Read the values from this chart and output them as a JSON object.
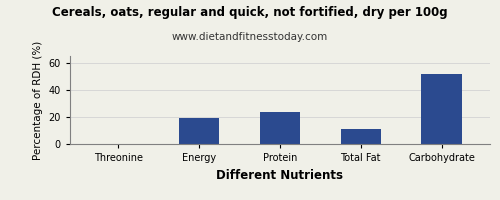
{
  "title": "Cereals, oats, regular and quick, not fortified, dry per 100g",
  "subtitle": "www.dietandfitnesstoday.com",
  "xlabel": "Different Nutrients",
  "ylabel": "Percentage of RDH (%)",
  "categories": [
    "Threonine",
    "Energy",
    "Protein",
    "Total Fat",
    "Carbohydrate"
  ],
  "values": [
    0.3,
    19.0,
    23.5,
    11.0,
    52.0
  ],
  "bar_color": "#2b4a8f",
  "ylim": [
    0,
    65
  ],
  "yticks": [
    0,
    20,
    40,
    60
  ],
  "background_color": "#f0f0e8",
  "title_fontsize": 8.5,
  "subtitle_fontsize": 7.5,
  "axis_label_fontsize": 7.5,
  "tick_fontsize": 7.0,
  "xlabel_fontsize": 8.5,
  "bar_width": 0.5
}
